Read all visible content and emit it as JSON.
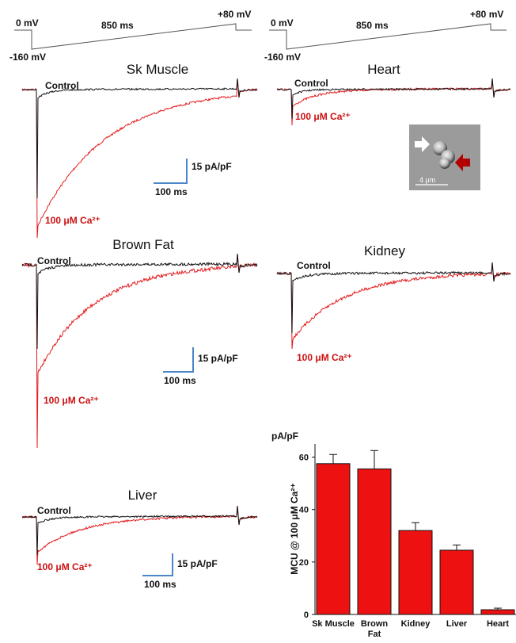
{
  "protocol": {
    "start_label": "0 mV",
    "duration_label": "850 ms",
    "end_label": "+80 mV",
    "hold_label": "-160 mV"
  },
  "panels": {
    "sk_muscle": {
      "title": "Sk Muscle",
      "control": "Control",
      "ca": "100 μM Ca²⁺"
    },
    "heart": {
      "title": "Heart",
      "control": "Control",
      "ca": "100 μM Ca²⁺"
    },
    "brown_fat": {
      "title": "Brown Fat",
      "control": "Control",
      "ca": "100 μM Ca²⁺"
    },
    "kidney": {
      "title": "Kidney",
      "control": "Control",
      "ca": "100 μM Ca²⁺"
    },
    "liver": {
      "title": "Liver",
      "control": "Control",
      "ca": "100 μM Ca²⁺"
    }
  },
  "scale_bar": {
    "y_label": "15 pA/pF",
    "x_label": "100 ms"
  },
  "micrograph": {
    "scale_label": "4 μm"
  },
  "colors": {
    "control": "#111111",
    "calcium": "#e41a1c",
    "scale_bar": "#4a86c8",
    "bar_fill": "#ee1111"
  },
  "chart_data": {
    "type": "bar",
    "categories": [
      "Sk Muscle",
      "Brown Fat",
      "Kidney",
      "Liver",
      "Heart"
    ],
    "category_lines": [
      [
        "Sk Muscle"
      ],
      [
        "Brown",
        "Fat"
      ],
      [
        "Kidney"
      ],
      [
        "Liver"
      ],
      [
        "Heart"
      ]
    ],
    "values": [
      57.5,
      55.5,
      32,
      24.5,
      1.8
    ],
    "errors": [
      3.5,
      7,
      3,
      2,
      0.6
    ],
    "unit_label": "pA/pF",
    "ylabel": "MCU @ 100 μM Ca²⁺",
    "ylim": [
      0,
      65
    ],
    "yticks": [
      0,
      20,
      40,
      60
    ],
    "grid": false
  }
}
